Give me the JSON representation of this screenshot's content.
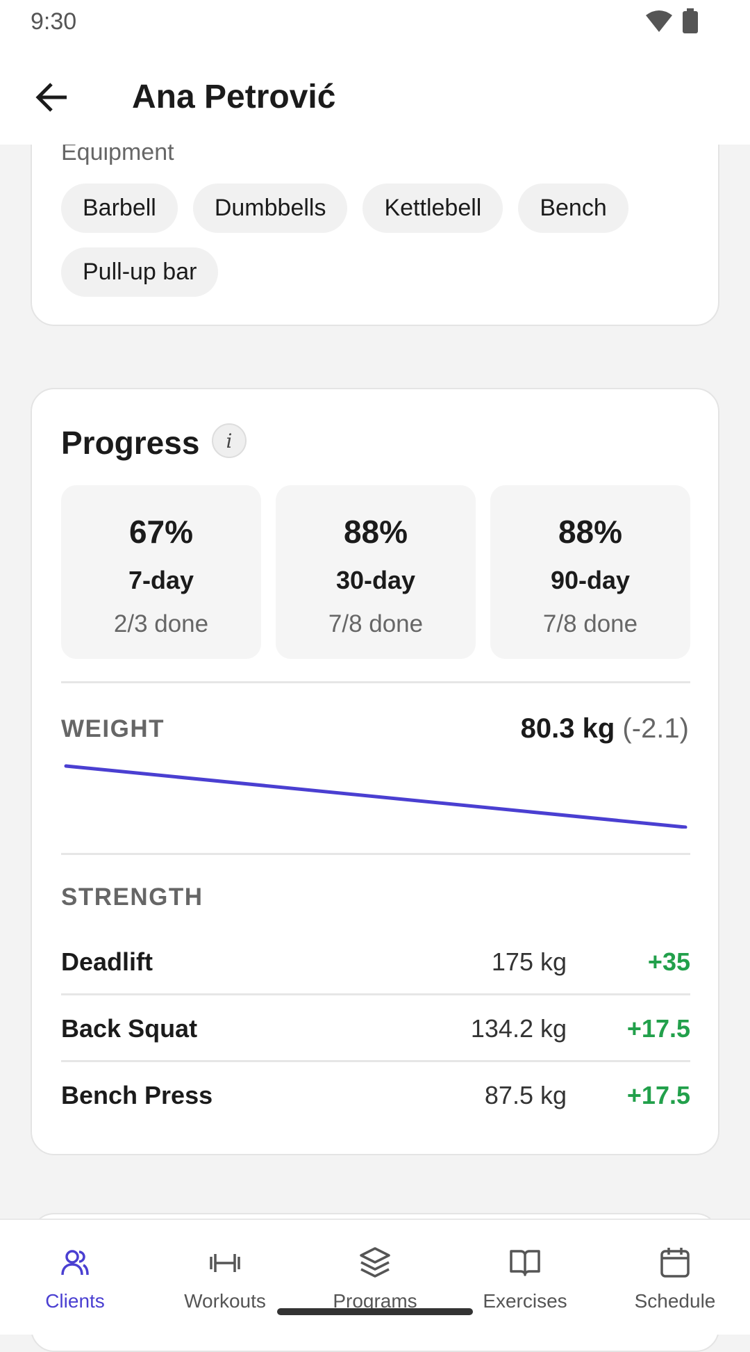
{
  "status_bar": {
    "time": "9:30"
  },
  "header": {
    "title": "Ana Petrović"
  },
  "equipment": {
    "label": "Equipment",
    "items": [
      "Barbell",
      "Dumbbells",
      "Kettlebell",
      "Bench",
      "Pull-up bar"
    ]
  },
  "progress": {
    "title": "Progress",
    "info_icon": "i",
    "stats": [
      {
        "value": "67%",
        "period": "7-day",
        "done": "2/3 done"
      },
      {
        "value": "88%",
        "period": "30-day",
        "done": "7/8 done"
      },
      {
        "value": "88%",
        "period": "90-day",
        "done": "7/8 done"
      }
    ],
    "weight": {
      "label": "WEIGHT",
      "current": "80.3 kg",
      "change": "(-2.1)",
      "trend": [
        82.4,
        80.3
      ]
    },
    "strength": {
      "label": "STRENGTH",
      "lifts": [
        {
          "name": "Deadlift",
          "weight": "175 kg",
          "change": "+35"
        },
        {
          "name": "Back Squat",
          "weight": "134.2 kg",
          "change": "+17.5"
        },
        {
          "name": "Bench Press",
          "weight": "87.5 kg",
          "change": "+17.5"
        }
      ]
    }
  },
  "nav": {
    "items": [
      {
        "label": "Clients",
        "active": true
      },
      {
        "label": "Workouts",
        "active": false
      },
      {
        "label": "Programs",
        "active": false
      },
      {
        "label": "Exercises",
        "active": false
      },
      {
        "label": "Schedule",
        "active": false
      }
    ]
  }
}
